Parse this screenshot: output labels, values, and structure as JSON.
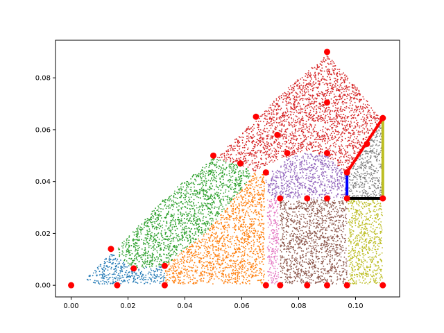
{
  "chart_data": {
    "type": "scatter",
    "title": "",
    "xlabel": "",
    "ylabel": "",
    "xlim": [
      -0.0055,
      0.1155
    ],
    "ylim": [
      -0.0045,
      0.0945
    ],
    "xticks": [
      0.0,
      0.02,
      0.04,
      0.06,
      0.08,
      0.1
    ],
    "xtick_labels": [
      "0.00",
      "0.02",
      "0.04",
      "0.06",
      "0.08",
      "0.10"
    ],
    "yticks": [
      0.0,
      0.02,
      0.04,
      0.06,
      0.08
    ],
    "ytick_labels": [
      "0.00",
      "0.02",
      "0.04",
      "0.06",
      "0.08"
    ],
    "grid": false,
    "point_clouds": [
      {
        "color": "#1f77b4",
        "region": [
          [
            0.003,
            0.0005
          ],
          [
            0.033,
            0.0005
          ],
          [
            0.033,
            0.0075
          ],
          [
            0.022,
            0.0065
          ],
          [
            0.014,
            0.0125
          ]
        ]
      },
      {
        "color": "#2ca02c",
        "region": [
          [
            0.016,
            0.012
          ],
          [
            0.022,
            0.0065
          ],
          [
            0.033,
            0.0075
          ],
          [
            0.047,
            0.02
          ],
          [
            0.056,
            0.032
          ],
          [
            0.065,
            0.044
          ],
          [
            0.057,
            0.047
          ],
          [
            0.05,
            0.049
          ],
          [
            0.034,
            0.035
          ],
          [
            0.016,
            0.014
          ]
        ]
      },
      {
        "color": "#ff7f0e",
        "region": [
          [
            0.033,
            0.0005
          ],
          [
            0.068,
            0.0005
          ],
          [
            0.068,
            0.043
          ],
          [
            0.065,
            0.044
          ],
          [
            0.056,
            0.032
          ],
          [
            0.047,
            0.02
          ],
          [
            0.033,
            0.0075
          ]
        ]
      },
      {
        "color": "#d62728",
        "region": [
          [
            0.051,
            0.049
          ],
          [
            0.063,
            0.062
          ],
          [
            0.075,
            0.075
          ],
          [
            0.09,
            0.089
          ],
          [
            0.1,
            0.077
          ],
          [
            0.109,
            0.064
          ],
          [
            0.097,
            0.043
          ],
          [
            0.09,
            0.05
          ],
          [
            0.082,
            0.052
          ],
          [
            0.068,
            0.046
          ],
          [
            0.065,
            0.044
          ],
          [
            0.057,
            0.047
          ]
        ]
      },
      {
        "color": "#9467bd",
        "region": [
          [
            0.0685,
            0.0335
          ],
          [
            0.097,
            0.0335
          ],
          [
            0.097,
            0.043
          ],
          [
            0.09,
            0.05
          ],
          [
            0.082,
            0.051
          ],
          [
            0.076,
            0.049
          ],
          [
            0.0685,
            0.043
          ]
        ]
      },
      {
        "color": "#e377c2",
        "region": [
          [
            0.069,
            0.0005
          ],
          [
            0.073,
            0.0005
          ],
          [
            0.073,
            0.033
          ],
          [
            0.069,
            0.033
          ]
        ]
      },
      {
        "color": "#8c564b",
        "region": [
          [
            0.0735,
            0.0005
          ],
          [
            0.097,
            0.0005
          ],
          [
            0.097,
            0.033
          ],
          [
            0.0735,
            0.033
          ]
        ]
      },
      {
        "color": "#bcbd22",
        "region": [
          [
            0.0975,
            0.0005
          ],
          [
            0.1095,
            0.0005
          ],
          [
            0.1095,
            0.033
          ],
          [
            0.0975,
            0.033
          ]
        ]
      },
      {
        "color": "#7f7f7f",
        "region": [
          [
            0.0975,
            0.0335
          ],
          [
            0.1095,
            0.0335
          ],
          [
            0.1095,
            0.064
          ],
          [
            0.0975,
            0.044
          ]
        ]
      }
    ],
    "segments": [
      {
        "color": "#0000ff",
        "x": [
          0.097,
          0.097
        ],
        "y": [
          0.0335,
          0.0435
        ]
      },
      {
        "color": "#000000",
        "x": [
          0.097,
          0.1096
        ],
        "y": [
          0.0335,
          0.0335
        ]
      },
      {
        "color": "#bcbd22",
        "x": [
          0.1096,
          0.1096
        ],
        "y": [
          0.0335,
          0.0645
        ]
      },
      {
        "color": "#ff0000",
        "x": [
          0.097,
          0.1096
        ],
        "y": [
          0.0435,
          0.0645
        ]
      }
    ],
    "vertices": {
      "color": "#ff0000",
      "x": [
        0.0,
        0.0162,
        0.0329,
        0.0685,
        0.0735,
        0.083,
        0.09,
        0.097,
        0.1096,
        0.014,
        0.022,
        0.0329,
        0.0735,
        0.083,
        0.09,
        0.097,
        0.1096,
        0.0685,
        0.097,
        0.09,
        0.076,
        0.0595,
        0.05,
        0.0725,
        0.104,
        0.065,
        0.1096,
        0.09,
        0.09
      ],
      "y": [
        0.0,
        0.0,
        0.0,
        0.0,
        0.0,
        0.0,
        0.0,
        0.0,
        0.0,
        0.014,
        0.0065,
        0.0075,
        0.0335,
        0.0335,
        0.0335,
        0.0335,
        0.0335,
        0.0435,
        0.0435,
        0.051,
        0.051,
        0.047,
        0.05,
        0.058,
        0.0545,
        0.065,
        0.0645,
        0.0705,
        0.09
      ]
    }
  }
}
